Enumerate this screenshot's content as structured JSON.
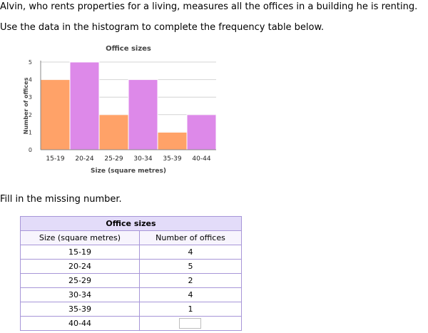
{
  "question": {
    "line1": "Alvin, who rents properties for a living, measures all the offices in a building he is renting.",
    "line2": "Use the data in the histogram to complete the frequency table below.",
    "fill_prompt": "Fill in the missing number."
  },
  "chart_data": {
    "type": "bar",
    "title": "Office sizes",
    "xlabel": "Size (square metres)",
    "ylabel": "Number of offices",
    "categories": [
      "15-19",
      "20-24",
      "25-29",
      "30-34",
      "35-39",
      "40-44"
    ],
    "values": [
      4,
      5,
      2,
      4,
      1,
      2
    ],
    "ylim": [
      0,
      5
    ],
    "yticks": [
      "0",
      "1",
      "2",
      "3",
      "4",
      "5"
    ],
    "grid": true,
    "colors": [
      "#ffa268",
      "#dd89e9"
    ]
  },
  "table": {
    "title": "Office sizes",
    "headers": [
      "Size (square metres)",
      "Number of offices"
    ],
    "rows": [
      {
        "size": "15-19",
        "count": "4"
      },
      {
        "size": "20-24",
        "count": "5"
      },
      {
        "size": "25-29",
        "count": "2"
      },
      {
        "size": "30-34",
        "count": "4"
      },
      {
        "size": "35-39",
        "count": "1"
      },
      {
        "size": "40-44",
        "count": ""
      }
    ]
  }
}
